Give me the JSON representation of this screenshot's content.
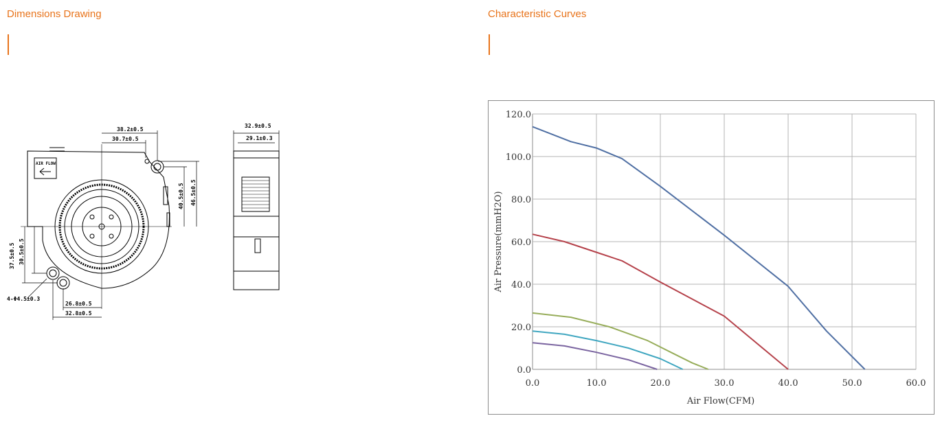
{
  "sections": {
    "dimensions_title": "Dimensions Drawing",
    "curves_title": "Characteristic Curves"
  },
  "drawing": {
    "airflow_label": "AIR FLOW",
    "dims": {
      "top_outer": "38.2±0.5",
      "top_inner": "30.7±0.5",
      "right_inner": "40.5±0.5",
      "right_outer": "46.5±0.5",
      "left_outer": "37.5±0.5",
      "left_inner": "30.5±0.5",
      "hole": "4-Φ4.5±0.3",
      "bottom_inner": "26.8±0.5",
      "bottom_outer": "32.8±0.5",
      "side_outer": "32.9±0.5",
      "side_inner": "29.1±0.3"
    }
  },
  "colors": {
    "accent": "#e8731a",
    "grid": "#b4b4b4",
    "axis": "#8c8c8c"
  },
  "chart_data": {
    "type": "line",
    "xlabel": "Air Flow(CFM)",
    "ylabel": "Air Pressure(mmH2O)",
    "xlim": [
      0,
      60
    ],
    "ylim": [
      0,
      120
    ],
    "xticks": [
      "0.0",
      "10.0",
      "20.0",
      "30.0",
      "40.0",
      "50.0",
      "60.0"
    ],
    "yticks": [
      "0.0",
      "20.0",
      "40.0",
      "60.0",
      "80.0",
      "100.0",
      "120.0"
    ],
    "grid": true,
    "series": [
      {
        "color": "#4f6fa3",
        "points": [
          [
            0,
            114
          ],
          [
            6,
            107
          ],
          [
            10,
            104
          ],
          [
            14,
            99
          ],
          [
            20,
            86
          ],
          [
            30,
            63
          ],
          [
            40,
            39
          ],
          [
            46,
            18
          ],
          [
            52,
            0
          ]
        ]
      },
      {
        "color": "#b5414a",
        "points": [
          [
            0,
            63.5
          ],
          [
            5,
            60
          ],
          [
            10,
            55
          ],
          [
            14,
            51
          ],
          [
            20,
            41
          ],
          [
            30,
            25
          ],
          [
            34,
            15
          ],
          [
            40,
            0
          ]
        ]
      },
      {
        "color": "#97ad5a",
        "points": [
          [
            0,
            26.5
          ],
          [
            6,
            24.5
          ],
          [
            12,
            20
          ],
          [
            18,
            13.5
          ],
          [
            22,
            7.5
          ],
          [
            25,
            3
          ],
          [
            27.5,
            0
          ]
        ]
      },
      {
        "color": "#3fa6c0",
        "points": [
          [
            0,
            18
          ],
          [
            5,
            16.5
          ],
          [
            10,
            13.5
          ],
          [
            15,
            10
          ],
          [
            20,
            5
          ],
          [
            23.5,
            0
          ]
        ]
      },
      {
        "color": "#7a64a0",
        "points": [
          [
            0,
            12.5
          ],
          [
            5,
            11
          ],
          [
            10,
            8
          ],
          [
            15,
            4.5
          ],
          [
            19.5,
            0
          ]
        ]
      }
    ]
  }
}
